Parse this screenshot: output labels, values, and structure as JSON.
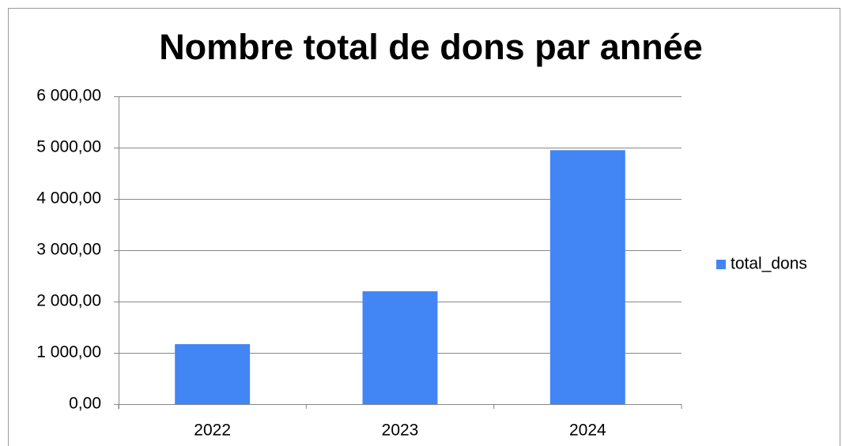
{
  "chart_data": {
    "type": "bar",
    "title": "Nombre total de dons par année",
    "categories": [
      "2022",
      "2023",
      "2024"
    ],
    "series": [
      {
        "name": "total_dons",
        "color": "#4285f4",
        "values": [
          1170,
          2200,
          4950
        ]
      }
    ],
    "ylim": [
      0,
      6000
    ],
    "yticks": [
      {
        "value": 0,
        "label": "0,00"
      },
      {
        "value": 1000,
        "label": "1 000,00"
      },
      {
        "value": 2000,
        "label": "2 000,00"
      },
      {
        "value": 3000,
        "label": "3 000,00"
      },
      {
        "value": 4000,
        "label": "4 000,00"
      },
      {
        "value": 5000,
        "label": "5 000,00"
      },
      {
        "value": 6000,
        "label": "6 000,00"
      }
    ],
    "grid": true,
    "legend": "right"
  }
}
